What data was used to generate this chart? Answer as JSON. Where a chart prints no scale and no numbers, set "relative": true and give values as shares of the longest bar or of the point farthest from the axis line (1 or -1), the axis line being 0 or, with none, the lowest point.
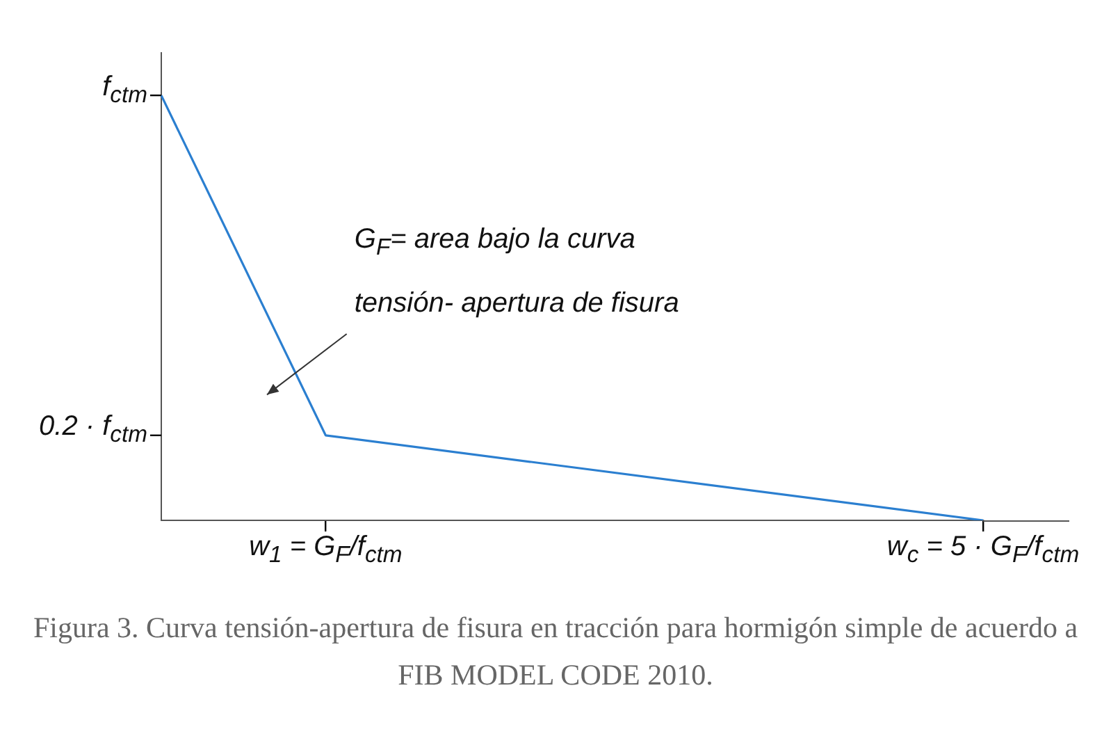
{
  "chart_data": {
    "type": "line",
    "categories": [
      null,
      "w$_{1}$ = G$_{F}$/f$_{ctm}$",
      null,
      null,
      null,
      "w$_{c}$ = 5 · G$_{F}$/f$_{ctm}$"
    ],
    "series": [
      {
        "color": "#2b7fd0",
        "values": [
          1,
          0.2,
          null,
          null,
          null,
          0
        ]
      }
    ],
    "relative": true,
    "annotations": [
      "f$_{ctm}$",
      "0.2 · f$_{ctm}$",
      "G$_{F}$= area bajo la curva tensión- apertura de fisura",
      "Figura 3. Curva tensión-apertura de fisura en tracción para hormigón simple de acuerdo a FIB MODEL CODE 2010."
    ],
    "grid": false,
    "legend": false,
    "marker": "none",
    "line_style": "solid"
  }
}
